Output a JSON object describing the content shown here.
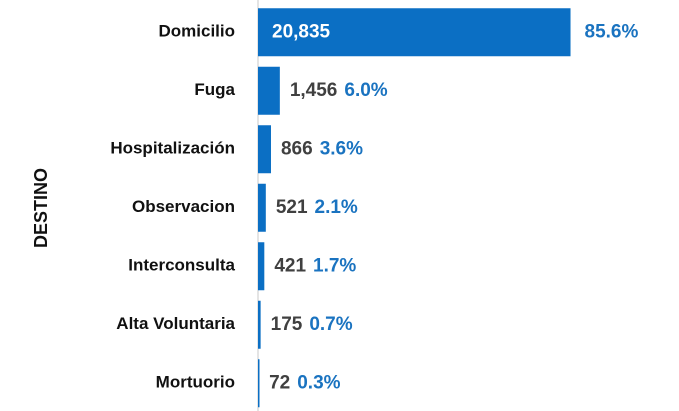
{
  "chart_data": {
    "type": "bar",
    "orientation": "horizontal",
    "y_label": "DESTINO",
    "categories": [
      "Domicilio",
      "Fuga",
      "Hospitalización",
      "Observacion",
      "Interconsulta",
      "Alta Voluntaria",
      "Mortuorio"
    ],
    "values": [
      20835,
      1456,
      866,
      521,
      421,
      175,
      72
    ],
    "value_labels": [
      "20,835",
      "1,456",
      "866",
      "521",
      "421",
      "175",
      "72"
    ],
    "share_labels": [
      "85.6%",
      "6.0%",
      "3.6%",
      "2.1%",
      "1.7%",
      "0.7%",
      "0.3%"
    ],
    "color": "#0b6fc4",
    "xlim": [
      0,
      21000
    ]
  }
}
